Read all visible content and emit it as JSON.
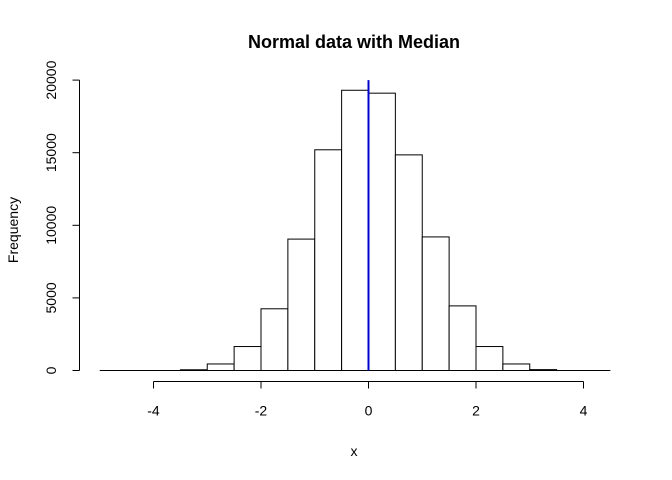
{
  "chart_data": {
    "type": "bar",
    "title": "Normal data with Median",
    "xlabel": "x",
    "ylabel": "Frequency",
    "bin_width": 0.5,
    "bins": [
      {
        "x0": -5.0,
        "x1": -4.5,
        "count": 0
      },
      {
        "x0": -4.5,
        "x1": -4.0,
        "count": 0
      },
      {
        "x0": -4.0,
        "x1": -3.5,
        "count": 0
      },
      {
        "x0": -3.5,
        "x1": -3.0,
        "count": 50
      },
      {
        "x0": -3.0,
        "x1": -2.5,
        "count": 450
      },
      {
        "x0": -2.5,
        "x1": -2.0,
        "count": 1650
      },
      {
        "x0": -2.0,
        "x1": -1.5,
        "count": 4250
      },
      {
        "x0": -1.5,
        "x1": -1.0,
        "count": 9050
      },
      {
        "x0": -1.0,
        "x1": -0.5,
        "count": 15200
      },
      {
        "x0": -0.5,
        "x1": 0.0,
        "count": 19300
      },
      {
        "x0": 0.0,
        "x1": 0.5,
        "count": 19100
      },
      {
        "x0": 0.5,
        "x1": 1.0,
        "count": 14850
      },
      {
        "x0": 1.0,
        "x1": 1.5,
        "count": 9200
      },
      {
        "x0": 1.5,
        "x1": 2.0,
        "count": 4450
      },
      {
        "x0": 2.0,
        "x1": 2.5,
        "count": 1650
      },
      {
        "x0": 2.5,
        "x1": 3.0,
        "count": 450
      },
      {
        "x0": 3.0,
        "x1": 3.5,
        "count": 60
      },
      {
        "x0": 3.5,
        "x1": 4.0,
        "count": 0
      },
      {
        "x0": 4.0,
        "x1": 4.5,
        "count": 0
      }
    ],
    "median": 0.0,
    "median_color": "#0000CC",
    "xlim": [
      -5.0,
      4.5
    ],
    "ylim": [
      0,
      20000
    ],
    "xticks": [
      -4,
      -2,
      0,
      2,
      4
    ],
    "xtick_labels": [
      "-4",
      "-2",
      "0",
      "2",
      "4"
    ],
    "yticks": [
      0,
      5000,
      10000,
      15000,
      20000
    ],
    "ytick_labels": [
      "0",
      "5000",
      "10000",
      "15000",
      "20000"
    ],
    "grid": false,
    "legend": "none"
  }
}
